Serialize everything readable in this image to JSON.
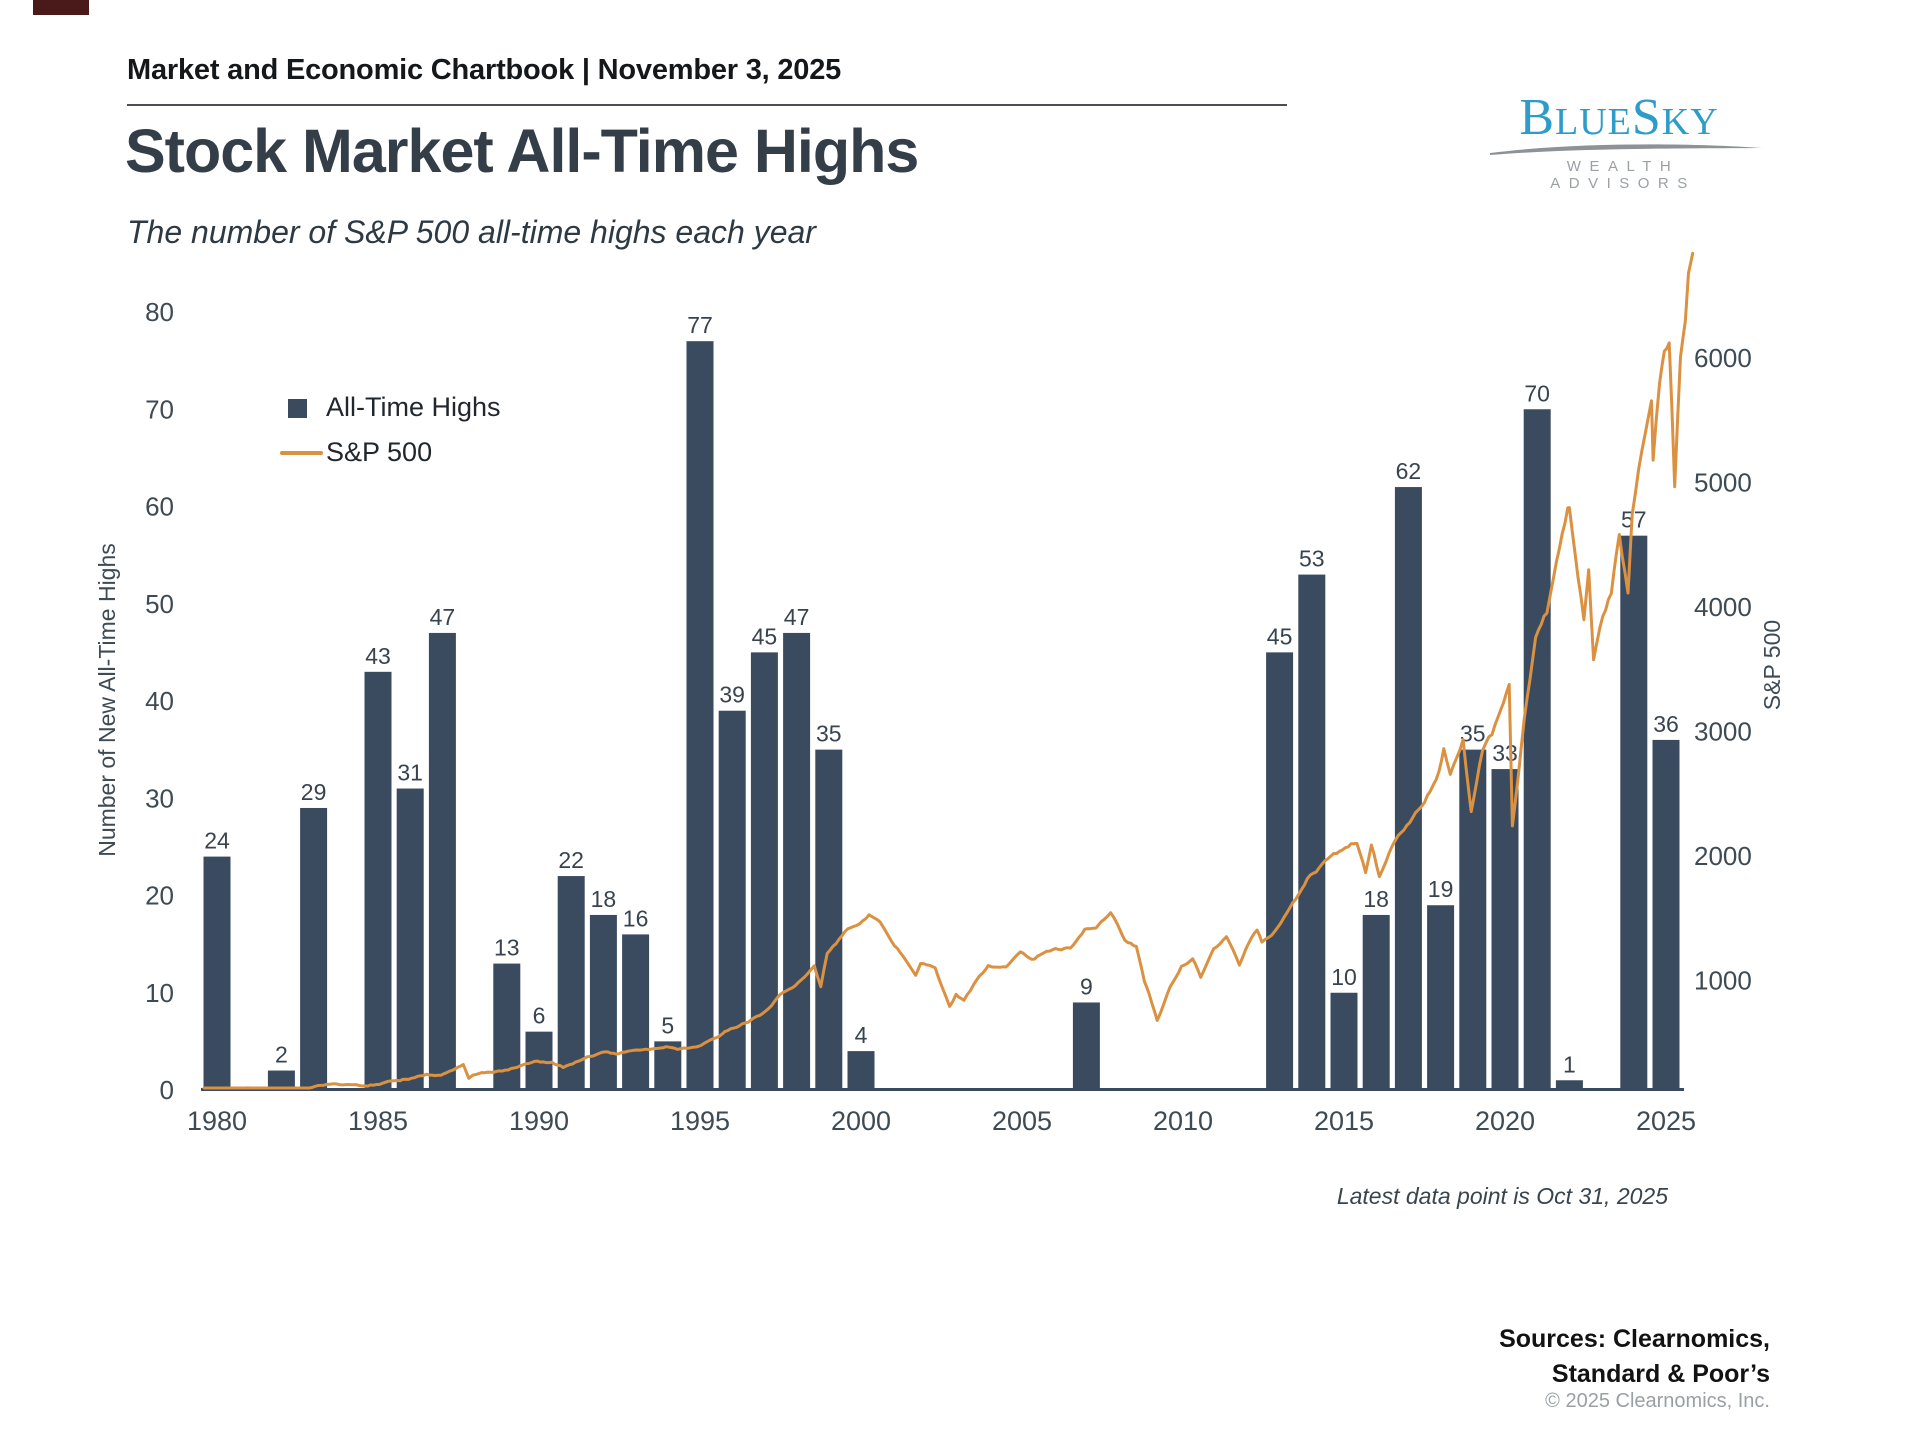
{
  "page": {
    "eyebrow": "Market and Economic Chartbook | November 3, 2025",
    "title": "Stock Market All-Time Highs",
    "subtitle": "The number of S&P 500 all-time highs each year",
    "footnote": "Latest data point is Oct 31, 2025",
    "sources_line1": "Sources: Clearnomics,",
    "sources_line2": "Standard & Poor’s",
    "copyright": "© 2025 Clearnomics, Inc."
  },
  "logo": {
    "name_parts": [
      "B",
      "LUE",
      "S",
      "KY"
    ],
    "tagline": "WEALTH ADVISORS",
    "brand_color": "#2e9cc9",
    "tagline_color": "#9aa0a5"
  },
  "legend": {
    "bars_label": "All-Time Highs",
    "line_label": "S&P 500"
  },
  "chart_data": {
    "type": "bar+line",
    "title": "Stock Market All-Time Highs",
    "subtitle": "The number of S&P 500 all-time highs each year",
    "ylabel_left": "Number of New All-Time Highs",
    "ylabel_right": "S&P 500",
    "grid": false,
    "legend_position": "upper-left",
    "ylim_left": [
      0,
      80
    ],
    "left_ticks": [
      0,
      10,
      20,
      30,
      40,
      50,
      60,
      70,
      80
    ],
    "ylim_right": [
      0,
      6600
    ],
    "right_ticks": [
      1000,
      2000,
      3000,
      4000,
      5000,
      6000
    ],
    "x_ticks": [
      1980,
      1985,
      1990,
      1995,
      2000,
      2005,
      2010,
      2015,
      2020,
      2025
    ],
    "colors": {
      "bar": "#3a4b5f",
      "line": "#db9142",
      "axis": "#3a4b5f",
      "tick_text": "#3e4a54",
      "bar_label": "#38434f"
    },
    "bars": {
      "name": "All-Time Highs",
      "categories": [
        1980,
        1981,
        1982,
        1983,
        1984,
        1985,
        1986,
        1987,
        1988,
        1989,
        1990,
        1991,
        1992,
        1993,
        1994,
        1995,
        1996,
        1997,
        1998,
        1999,
        2000,
        2001,
        2002,
        2003,
        2004,
        2005,
        2006,
        2007,
        2008,
        2009,
        2010,
        2011,
        2012,
        2013,
        2014,
        2015,
        2016,
        2017,
        2018,
        2019,
        2020,
        2021,
        2022,
        2023,
        2024,
        2025
      ],
      "values": [
        24,
        0,
        2,
        29,
        0,
        43,
        31,
        47,
        0,
        13,
        6,
        22,
        18,
        16,
        5,
        77,
        39,
        45,
        47,
        35,
        4,
        0,
        0,
        0,
        0,
        0,
        0,
        9,
        0,
        0,
        0,
        0,
        0,
        45,
        53,
        10,
        18,
        62,
        19,
        35,
        33,
        70,
        1,
        0,
        57,
        36
      ]
    },
    "line": {
      "name": "S&P 500",
      "points": [
        [
          1979.6,
          108
        ],
        [
          1980.0,
          106
        ],
        [
          1980.5,
          115
        ],
        [
          1980.95,
          135
        ],
        [
          1981.3,
          132
        ],
        [
          1981.9,
          122
        ],
        [
          1982.5,
          109
        ],
        [
          1982.95,
          140
        ],
        [
          1983.5,
          165
        ],
        [
          1983.95,
          165
        ],
        [
          1984.5,
          152
        ],
        [
          1984.95,
          167
        ],
        [
          1985.5,
          190
        ],
        [
          1985.95,
          211
        ],
        [
          1986.5,
          245
        ],
        [
          1986.95,
          242
        ],
        [
          1987.4,
          290
        ],
        [
          1987.65,
          330
        ],
        [
          1987.82,
          225
        ],
        [
          1987.95,
          247
        ],
        [
          1988.5,
          265
        ],
        [
          1988.95,
          278
        ],
        [
          1989.5,
          320
        ],
        [
          1989.95,
          350
        ],
        [
          1990.4,
          340
        ],
        [
          1990.75,
          300
        ],
        [
          1990.95,
          330
        ],
        [
          1991.5,
          380
        ],
        [
          1991.95,
          417
        ],
        [
          1992.5,
          415
        ],
        [
          1992.95,
          436
        ],
        [
          1993.5,
          450
        ],
        [
          1993.95,
          466
        ],
        [
          1994.3,
          445
        ],
        [
          1994.7,
          455
        ],
        [
          1994.95,
          459
        ],
        [
          1995.5,
          545
        ],
        [
          1995.95,
          616
        ],
        [
          1996.5,
          670
        ],
        [
          1996.95,
          741
        ],
        [
          1997.5,
          880
        ],
        [
          1997.95,
          970
        ],
        [
          1998.55,
          1120
        ],
        [
          1998.75,
          960
        ],
        [
          1998.95,
          1229
        ],
        [
          1999.5,
          1380
        ],
        [
          1999.95,
          1469
        ],
        [
          2000.25,
          1527
        ],
        [
          2000.6,
          1450
        ],
        [
          2000.95,
          1320
        ],
        [
          2001.3,
          1200
        ],
        [
          2001.7,
          1040
        ],
        [
          2001.85,
          1130
        ],
        [
          2002.3,
          1100
        ],
        [
          2002.75,
          777
        ],
        [
          2002.95,
          880
        ],
        [
          2003.2,
          840
        ],
        [
          2003.6,
          1000
        ],
        [
          2003.95,
          1112
        ],
        [
          2004.5,
          1120
        ],
        [
          2004.95,
          1212
        ],
        [
          2005.3,
          1170
        ],
        [
          2005.95,
          1248
        ],
        [
          2006.5,
          1270
        ],
        [
          2006.95,
          1418
        ],
        [
          2007.3,
          1430
        ],
        [
          2007.55,
          1505
        ],
        [
          2007.75,
          1565
        ],
        [
          2007.95,
          1468
        ],
        [
          2008.2,
          1330
        ],
        [
          2008.55,
          1280
        ],
        [
          2008.8,
          1000
        ],
        [
          2008.95,
          903
        ],
        [
          2009.2,
          677
        ],
        [
          2009.6,
          950
        ],
        [
          2009.95,
          1115
        ],
        [
          2010.3,
          1180
        ],
        [
          2010.55,
          1030
        ],
        [
          2010.95,
          1258
        ],
        [
          2011.35,
          1340
        ],
        [
          2011.75,
          1120
        ],
        [
          2011.95,
          1258
        ],
        [
          2012.3,
          1400
        ],
        [
          2012.45,
          1310
        ],
        [
          2012.95,
          1426
        ],
        [
          2013.5,
          1650
        ],
        [
          2013.95,
          1848
        ],
        [
          2014.5,
          1960
        ],
        [
          2014.95,
          2059
        ],
        [
          2015.4,
          2110
        ],
        [
          2015.67,
          1870
        ],
        [
          2015.85,
          2080
        ],
        [
          2016.1,
          1830
        ],
        [
          2016.5,
          2100
        ],
        [
          2016.95,
          2239
        ],
        [
          2017.5,
          2430
        ],
        [
          2017.95,
          2674
        ],
        [
          2018.1,
          2872
        ],
        [
          2018.3,
          2640
        ],
        [
          2018.7,
          2931
        ],
        [
          2018.95,
          2350
        ],
        [
          2019.3,
          2850
        ],
        [
          2019.6,
          2980
        ],
        [
          2019.95,
          3231
        ],
        [
          2020.13,
          3386
        ],
        [
          2020.23,
          2237
        ],
        [
          2020.6,
          3100
        ],
        [
          2020.95,
          3756
        ],
        [
          2021.3,
          3950
        ],
        [
          2021.6,
          4350
        ],
        [
          2021.95,
          4766
        ],
        [
          2022.0,
          4797
        ],
        [
          2022.45,
          3900
        ],
        [
          2022.6,
          4300
        ],
        [
          2022.75,
          3577
        ],
        [
          2022.95,
          3840
        ],
        [
          2023.3,
          4100
        ],
        [
          2023.55,
          4580
        ],
        [
          2023.82,
          4120
        ],
        [
          2023.95,
          4770
        ],
        [
          2024.25,
          5250
        ],
        [
          2024.55,
          5650
        ],
        [
          2024.6,
          5190
        ],
        [
          2024.8,
          5800
        ],
        [
          2024.95,
          6090
        ],
        [
          2025.1,
          6150
        ],
        [
          2025.27,
          4982
        ],
        [
          2025.45,
          6000
        ],
        [
          2025.6,
          6300
        ],
        [
          2025.7,
          6690
        ],
        [
          2025.83,
          6840
        ]
      ]
    },
    "annotation": "Latest data point is Oct 31, 2025"
  }
}
